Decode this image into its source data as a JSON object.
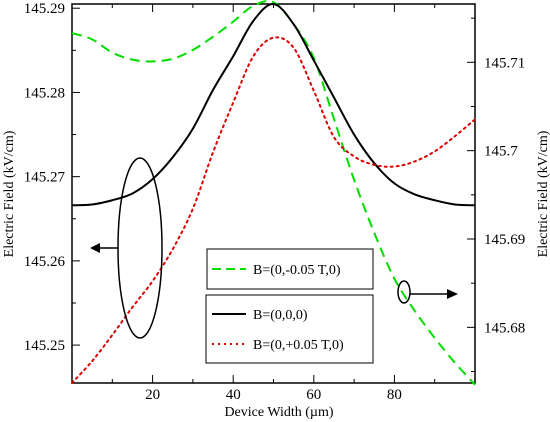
{
  "chart_data": {
    "type": "line",
    "xlabel": "Device Width (µm)",
    "ylabel_left": "Electric Field (kV/cm)",
    "ylabel_right": "Electric Field (kV/cm)",
    "xlim": [
      0,
      100
    ],
    "ylim_left": [
      145.2455,
      145.2905
    ],
    "ylim_right": [
      145.6737,
      145.7166
    ],
    "x_ticks": [
      "20",
      "40",
      "60",
      "80"
    ],
    "x_tick_values": [
      20,
      40,
      60,
      80
    ],
    "y_left_ticks": [
      "145.25",
      "145.26",
      "145.27",
      "145.28",
      "145.29"
    ],
    "y_left_tick_values": [
      145.25,
      145.26,
      145.27,
      145.28,
      145.29
    ],
    "y_right_ticks": [
      "145.68",
      "145.69",
      "145.7",
      "145.71"
    ],
    "y_right_tick_values": [
      145.68,
      145.69,
      145.7,
      145.71
    ],
    "legend_box_1": [
      "B=(0,-0.05 T,0)"
    ],
    "legend_box_2": [
      "B=(0,0,0)",
      "B=(0,+0.05 T,0)"
    ],
    "series": [
      {
        "name": "B=(0,-0.05 T,0)",
        "axis": "right",
        "color": "#00dd00",
        "dash": "dashed",
        "x": [
          0,
          5,
          10,
          15,
          20,
          25,
          30,
          35,
          40,
          45,
          50,
          55,
          60,
          65,
          70,
          75,
          80,
          85,
          90,
          95,
          100
        ],
        "y": [
          145.7133,
          145.7126,
          145.7111,
          145.7103,
          145.7101,
          145.7104,
          145.7114,
          145.7129,
          145.7146,
          145.7164,
          145.7168,
          145.7143,
          145.7105,
          145.7036,
          145.6967,
          145.6907,
          145.6855,
          145.6819,
          145.6788,
          145.676,
          145.6735
        ]
      },
      {
        "name": "B=(0,0,0)",
        "axis": "left",
        "color": "#000000",
        "dash": "solid",
        "x": [
          0,
          5,
          10,
          15,
          20,
          25,
          30,
          35,
          40,
          45,
          50,
          55,
          60,
          65,
          70,
          75,
          80,
          85,
          90,
          95,
          100
        ],
        "y": [
          145.2666,
          145.2667,
          145.2672,
          145.268,
          145.2697,
          145.2723,
          145.2757,
          145.2803,
          145.2843,
          145.2885,
          145.2905,
          145.2881,
          145.2838,
          145.2794,
          145.275,
          145.2716,
          145.2692,
          145.2679,
          145.2672,
          145.2667,
          145.2666
        ]
      },
      {
        "name": "B=(0,+0.05 T,0)",
        "axis": "left",
        "color": "#dd0000",
        "dash": "dotted",
        "x": [
          0,
          5,
          10,
          15,
          20,
          25,
          30,
          35,
          40,
          45,
          50,
          55,
          60,
          65,
          70,
          75,
          80,
          85,
          90,
          95,
          100
        ],
        "y": [
          145.2455,
          145.2481,
          145.2512,
          145.2545,
          145.2576,
          145.2614,
          145.2662,
          145.2729,
          145.2788,
          145.2843,
          145.2865,
          145.2853,
          145.2802,
          145.2747,
          145.2724,
          145.2714,
          145.2712,
          145.2718,
          145.273,
          145.2748,
          145.2768
        ]
      }
    ]
  }
}
